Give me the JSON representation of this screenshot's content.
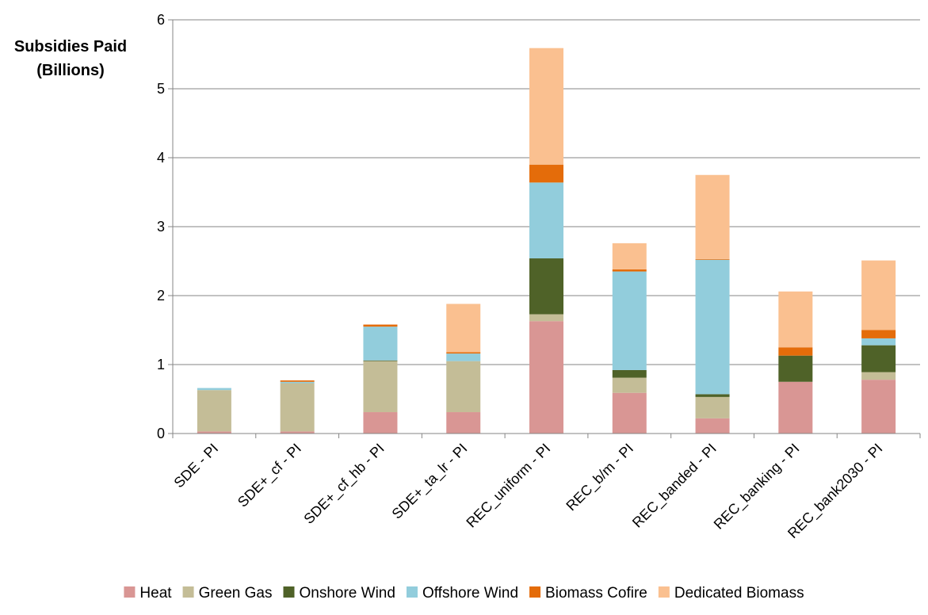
{
  "chart_data": {
    "type": "bar",
    "stacked": true,
    "title": "",
    "xlabel": "",
    "ylabel_lines": [
      "Subsidies Paid",
      "(Billions)"
    ],
    "ylim": [
      0,
      6
    ],
    "yticks": [
      "0",
      "1",
      "2",
      "3",
      "4",
      "5",
      "6"
    ],
    "grid": true,
    "legend_position": "bottom",
    "categories": [
      "SDE - PI",
      "SDE+_cf - PI",
      "SDE+_cf_hb - PI",
      "SDE+_ta_lr - PI",
      "REC_uniform - PI",
      "REC_b/m - PI",
      "REC_banded - PI",
      "REC_banking - PI",
      "REC_bank2030 - PI"
    ],
    "series": [
      {
        "name": "Heat",
        "color": "#D99694",
        "values": [
          0.03,
          0.03,
          0.31,
          0.31,
          1.63,
          0.59,
          0.22,
          0.75,
          0.78
        ]
      },
      {
        "name": "Green Gas",
        "color": "#C4BD97",
        "values": [
          0.6,
          0.7,
          0.74,
          0.74,
          0.1,
          0.22,
          0.31,
          0.0,
          0.11
        ]
      },
      {
        "name": "Onshore Wind",
        "color": "#4F6228",
        "values": [
          0.0,
          0.0,
          0.01,
          0.0,
          0.81,
          0.11,
          0.04,
          0.38,
          0.39
        ]
      },
      {
        "name": "Offshore Wind",
        "color": "#92CDDC",
        "values": [
          0.03,
          0.02,
          0.49,
          0.11,
          1.1,
          1.43,
          1.95,
          0.0,
          0.1
        ]
      },
      {
        "name": "Biomass Cofire",
        "color": "#E46C0A",
        "values": [
          0.0,
          0.02,
          0.03,
          0.02,
          0.26,
          0.03,
          0.01,
          0.12,
          0.12
        ]
      },
      {
        "name": "Dedicated Biomass",
        "color": "#FAC090",
        "values": [
          0.0,
          0.0,
          0.0,
          0.7,
          1.69,
          0.38,
          1.22,
          0.81,
          1.01
        ]
      }
    ]
  }
}
